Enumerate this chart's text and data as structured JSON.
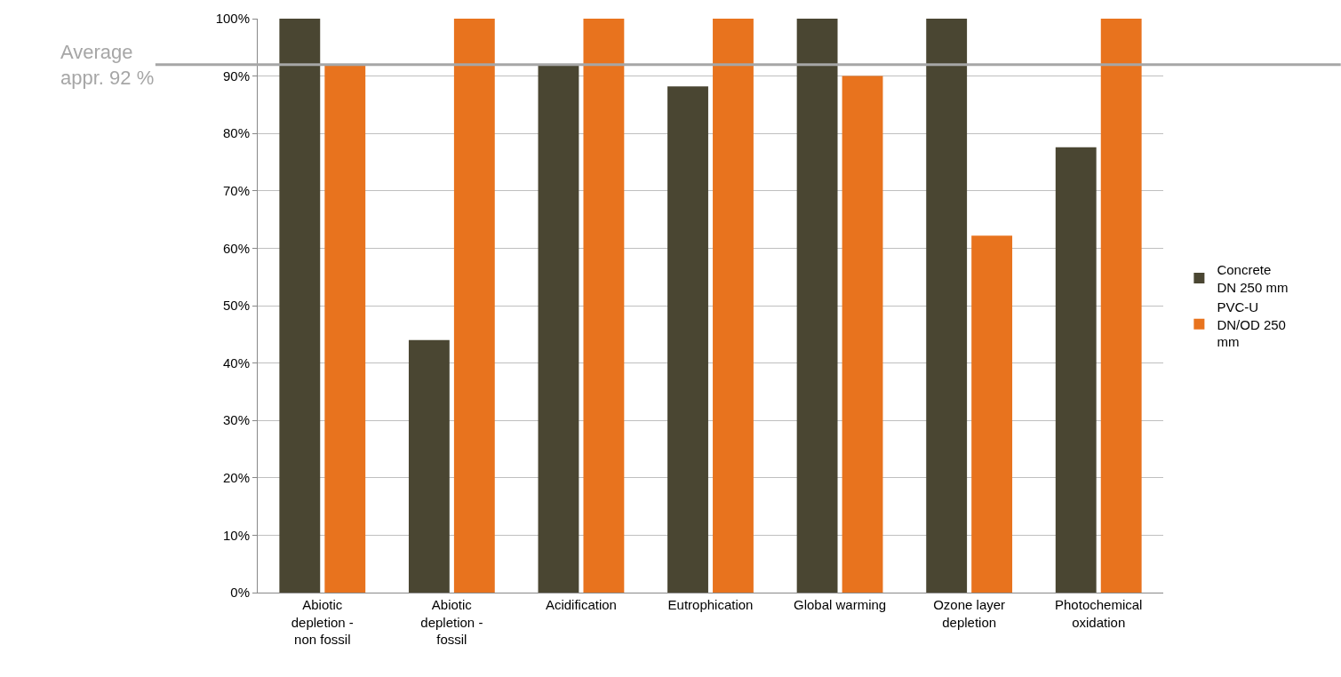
{
  "chart_data": {
    "type": "bar",
    "categories": [
      "Abiotic depletion - non fossil",
      "Abiotic depletion - fossil",
      "Acidification",
      "Eutrophication",
      "Global warming",
      "Ozone layer depletion",
      "Photochemical oxidation"
    ],
    "series": [
      {
        "name": "Concrete DN 250 mm",
        "color": "#4a4632",
        "values": [
          100,
          44,
          92,
          88.2,
          100,
          100,
          77.6
        ]
      },
      {
        "name": "PVC-U DN/OD 250 mm",
        "color": "#e8731e",
        "values": [
          92,
          100,
          100,
          100,
          90,
          62.2,
          100
        ]
      }
    ],
    "ylim": [
      0,
      100
    ],
    "yticks": [
      {
        "value": 0,
        "label": "0%"
      },
      {
        "value": 10,
        "label": "10%"
      },
      {
        "value": 20,
        "label": "20%"
      },
      {
        "value": 30,
        "label": "30%"
      },
      {
        "value": 40,
        "label": "40%"
      },
      {
        "value": 50,
        "label": "50%"
      },
      {
        "value": 60,
        "label": "60%"
      },
      {
        "value": 70,
        "label": "70%"
      },
      {
        "value": 80,
        "label": "80%"
      },
      {
        "value": 90,
        "label": "90%"
      },
      {
        "value": 100,
        "label": "100%"
      }
    ],
    "grid": "y",
    "legend": "right",
    "ref_lines": [
      {
        "axis": "y",
        "value": 92,
        "label": "Average appr. 92 %",
        "color": "#a6a6a6"
      }
    ]
  }
}
